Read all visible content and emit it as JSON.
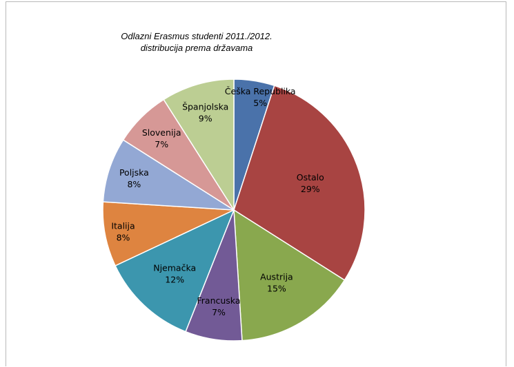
{
  "chart_data": {
    "type": "pie",
    "title_line1": "Odlazni Erasmus studenti 2011./2012.",
    "title_line2": "distribucija prema državama",
    "slices": [
      {
        "label": "Češka Republika",
        "value": 5,
        "display": "5%",
        "color": "#4a72aa"
      },
      {
        "label": "Ostalo",
        "value": 29,
        "display": "29%",
        "color": "#a84442"
      },
      {
        "label": "Austrija",
        "value": 15,
        "display": "15%",
        "color": "#89a84e"
      },
      {
        "label": "Francuska",
        "value": 7,
        "display": "7%",
        "color": "#725a96"
      },
      {
        "label": "Njemačka",
        "value": 12,
        "display": "12%",
        "color": "#3c96ae"
      },
      {
        "label": "Italija",
        "value": 8,
        "display": "8%",
        "color": "#de8440"
      },
      {
        "label": "Poljska",
        "value": 8,
        "display": "8%",
        "color": "#93a8d4"
      },
      {
        "label": "Slovenija",
        "value": 7,
        "display": "7%",
        "color": "#d69896"
      },
      {
        "label": "Španjolska",
        "value": 9,
        "display": "9%",
        "color": "#bcce93"
      }
    ]
  }
}
